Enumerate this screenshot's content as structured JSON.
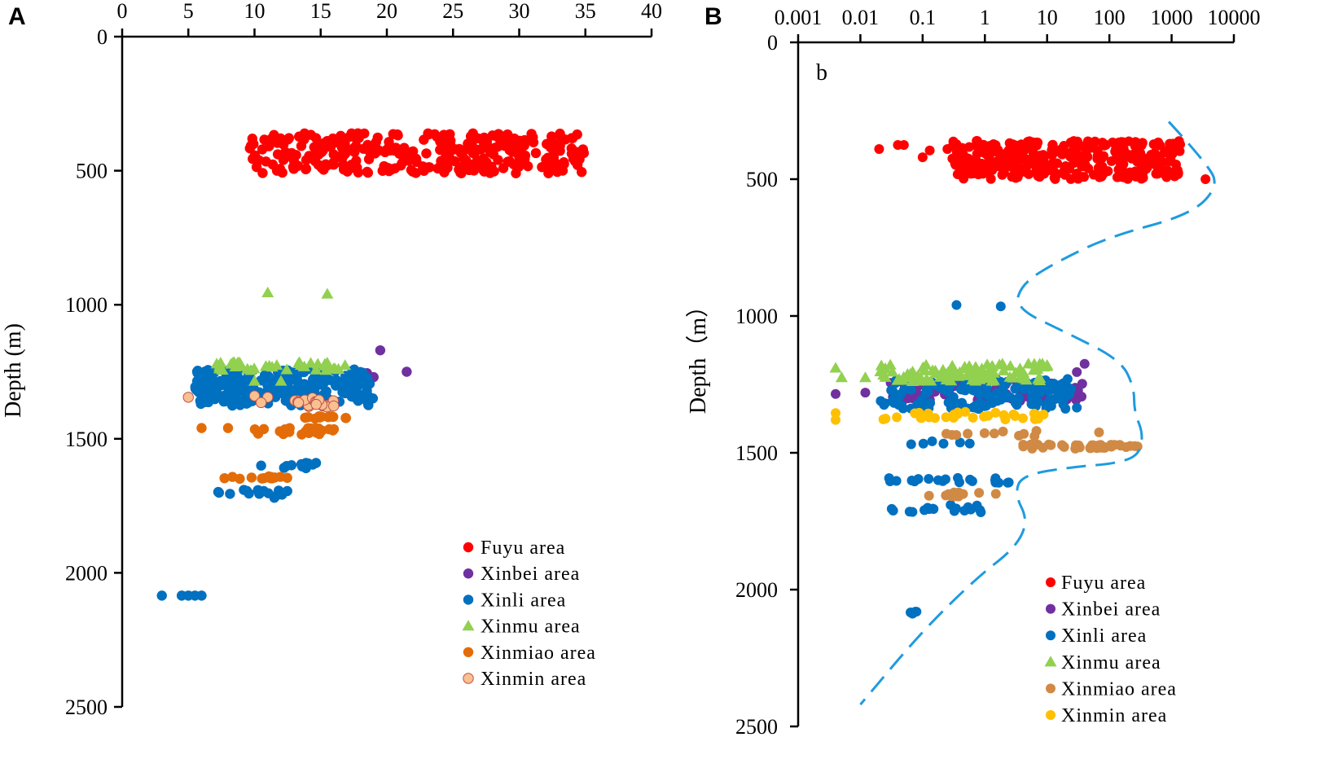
{
  "chart_data": [
    {
      "type": "scatter",
      "panel_label": "A",
      "ylabel": "Depth (m)",
      "xlabel": "",
      "x_scale": "linear",
      "xlim": [
        0,
        40
      ],
      "ylim": [
        0,
        2500
      ],
      "y_inverted": true,
      "x_tick_labels": [
        "0",
        "5",
        "10",
        "15",
        "20",
        "25",
        "30",
        "35",
        "40"
      ],
      "y_tick_labels": [
        "0",
        "500",
        "1000",
        "1500",
        "2000",
        "2500"
      ],
      "legend_position": "bottom-right",
      "series": [
        {
          "name": "Fuyu area",
          "marker": "circle",
          "color": "#ff0000",
          "clusters": [
            {
              "x": [
                9.5,
                35
              ],
              "y": [
                360,
                510
              ],
              "n": 330
            }
          ]
        },
        {
          "name": "Xinbei area",
          "marker": "circle",
          "color": "#7030a0",
          "points": [
            [
              19.5,
              1170
            ],
            [
              21.5,
              1250
            ],
            [
              19,
              1270
            ],
            [
              18,
              1270
            ],
            [
              17.5,
              1260
            ],
            [
              18.5,
              1255
            ]
          ]
        },
        {
          "name": "Xinli area",
          "marker": "circle",
          "color": "#0070c0",
          "clusters": [
            {
              "x": [
                5.5,
                19
              ],
              "y": [
                1240,
                1380
              ],
              "n": 260
            },
            {
              "x": [
                12,
                15
              ],
              "y": [
                1590,
                1610
              ],
              "n": 10
            },
            {
              "x": [
                6,
                13
              ],
              "y": [
                1690,
                1710
              ],
              "n": 14
            }
          ],
          "points": [
            [
              3,
              2085
            ],
            [
              4.5,
              2085
            ],
            [
              5,
              2085
            ],
            [
              5.5,
              2085
            ],
            [
              6,
              2085
            ],
            [
              9.5,
              1300
            ],
            [
              10.5,
              1600
            ],
            [
              11.5,
              1720
            ]
          ]
        },
        {
          "name": "Xinmu area",
          "marker": "triangle",
          "color": "#92d050",
          "points": [
            [
              11,
              955
            ],
            [
              15.5,
              960
            ]
          ],
          "clusters": [
            {
              "x": [
                7,
                17
              ],
              "y": [
                1215,
                1245
              ],
              "n": 40
            }
          ],
          "extra_points": [
            [
              10,
              1285
            ],
            [
              12,
              1285
            ]
          ]
        },
        {
          "name": "Xinmiao area",
          "marker": "circle",
          "color": "#e36c09",
          "clusters": [
            {
              "x": [
                13.5,
                17
              ],
              "y": [
                1415,
                1425
              ],
              "n": 14
            },
            {
              "x": [
                9.5,
                16
              ],
              "y": [
                1460,
                1485
              ],
              "n": 26
            },
            {
              "x": [
                7,
                12.5
              ],
              "y": [
                1640,
                1650
              ],
              "n": 14
            }
          ],
          "points": [
            [
              6,
              1460
            ],
            [
              8,
              1460
            ]
          ]
        },
        {
          "name": "Xinmin area",
          "marker": "circle",
          "color": "#fac090",
          "clusters": [
            {
              "x": [
                13,
                16
              ],
              "y": [
                1345,
                1385
              ],
              "n": 22
            }
          ],
          "points": [
            [
              5,
              1345
            ],
            [
              10,
              1340
            ],
            [
              11,
              1345
            ],
            [
              10.5,
              1365
            ]
          ]
        }
      ]
    },
    {
      "type": "scatter",
      "panel_label": "B",
      "annotation": "b",
      "ylabel": "Depth（m）",
      "xlabel": "",
      "x_scale": "log",
      "xlim": [
        0.001,
        10000
      ],
      "ylim": [
        0,
        2500
      ],
      "y_inverted": true,
      "x_tick_labels": [
        "0.001",
        "0.01",
        "0.1",
        "1",
        "10",
        "100",
        "1000",
        "10000"
      ],
      "y_tick_labels": [
        "0",
        "500",
        "1000",
        "1500",
        "2000",
        "2500"
      ],
      "legend_position": "bottom-right",
      "trend_line": {
        "style": "dashed",
        "color": "#1f9bde",
        "points": [
          [
            900,
            290
          ],
          [
            4000,
            450
          ],
          [
            5500,
            530
          ],
          [
            2000,
            630
          ],
          [
            100,
            710
          ],
          [
            15,
            800
          ],
          [
            4,
            880
          ],
          [
            3,
            970
          ],
          [
            20,
            1060
          ],
          [
            150,
            1160
          ],
          [
            250,
            1260
          ],
          [
            250,
            1350
          ],
          [
            350,
            1430
          ],
          [
            300,
            1510
          ],
          [
            120,
            1540
          ],
          [
            30,
            1550
          ],
          [
            4,
            1580
          ],
          [
            3,
            1650
          ],
          [
            5,
            1750
          ],
          [
            3,
            1850
          ],
          [
            0.8,
            1950
          ],
          [
            0.1,
            2150
          ],
          [
            0.01,
            2420
          ]
        ]
      },
      "series": [
        {
          "name": "Fuyu area",
          "marker": "circle",
          "color": "#ff0000",
          "points": [
            [
              0.02,
              390
            ],
            [
              0.04,
              375
            ],
            [
              0.05,
              375
            ],
            [
              0.1,
              420
            ],
            [
              0.13,
              395
            ],
            [
              0.25,
              390
            ]
          ],
          "clusters": [
            {
              "x": [
                0.3,
                1500
              ],
              "y": [
                360,
                500
              ],
              "n": 330
            }
          ],
          "extra_points": [
            [
              3500,
              500
            ]
          ]
        },
        {
          "name": "Xinbei area",
          "marker": "circle",
          "color": "#7030a0",
          "points": [
            [
              0.004,
              1285
            ],
            [
              0.012,
              1280
            ],
            [
              40,
              1175
            ],
            [
              30,
              1205
            ]
          ],
          "clusters": [
            {
              "x": [
                0.03,
                40
              ],
              "y": [
                1240,
                1310
              ],
              "n": 80
            }
          ]
        },
        {
          "name": "Xinli area",
          "marker": "circle",
          "color": "#0070c0",
          "points": [
            [
              0.35,
              960
            ],
            [
              1.8,
              965
            ],
            [
              30,
              1335
            ]
          ],
          "clusters": [
            {
              "x": [
                0.02,
                25
              ],
              "y": [
                1230,
                1340
              ],
              "n": 140
            },
            {
              "x": [
                0.06,
                0.6
              ],
              "y": [
                1455,
                1470
              ],
              "n": 6
            },
            {
              "x": [
                0.02,
                3
              ],
              "y": [
                1590,
                1610
              ],
              "n": 20
            },
            {
              "x": [
                0.03,
                1
              ],
              "y": [
                1690,
                1720
              ],
              "n": 18
            },
            {
              "x": [
                0.04,
                0.08
              ],
              "y": [
                2080,
                2090
              ],
              "n": 4
            }
          ]
        },
        {
          "name": "Xinmu area",
          "marker": "triangle",
          "color": "#92d050",
          "points": [
            [
              0.004,
              1190
            ],
            [
              0.005,
              1225
            ],
            [
              0.012,
              1225
            ]
          ],
          "clusters": [
            {
              "x": [
                0.02,
                10
              ],
              "y": [
                1175,
                1240
              ],
              "n": 100
            }
          ],
          "extra_points": [
            [
              5,
              1175
            ],
            [
              10,
              1180
            ],
            [
              2,
              1200
            ]
          ]
        },
        {
          "name": "Xinmiao area",
          "marker": "circle",
          "color": "#d08a45",
          "clusters": [
            {
              "x": [
                0.2,
                80
              ],
              "y": [
                1420,
                1440
              ],
              "n": 12
            },
            {
              "x": [
                3,
                100
              ],
              "y": [
                1460,
                1485
              ],
              "n": 20
            },
            {
              "x": [
                35,
                300
              ],
              "y": [
                1470,
                1485
              ],
              "n": 18
            },
            {
              "x": [
                0.05,
                1.5
              ],
              "y": [
                1645,
                1660
              ],
              "n": 10
            }
          ],
          "points": [
            [
              1.5,
              1650
            ]
          ]
        },
        {
          "name": "Xinmin area",
          "marker": "circle",
          "color": "#ffc000",
          "points": [
            [
              0.004,
              1355
            ],
            [
              0.004,
              1380
            ]
          ],
          "clusters": [
            {
              "x": [
                0.02,
                10
              ],
              "y": [
                1350,
                1380
              ],
              "n": 30
            }
          ]
        }
      ]
    }
  ]
}
